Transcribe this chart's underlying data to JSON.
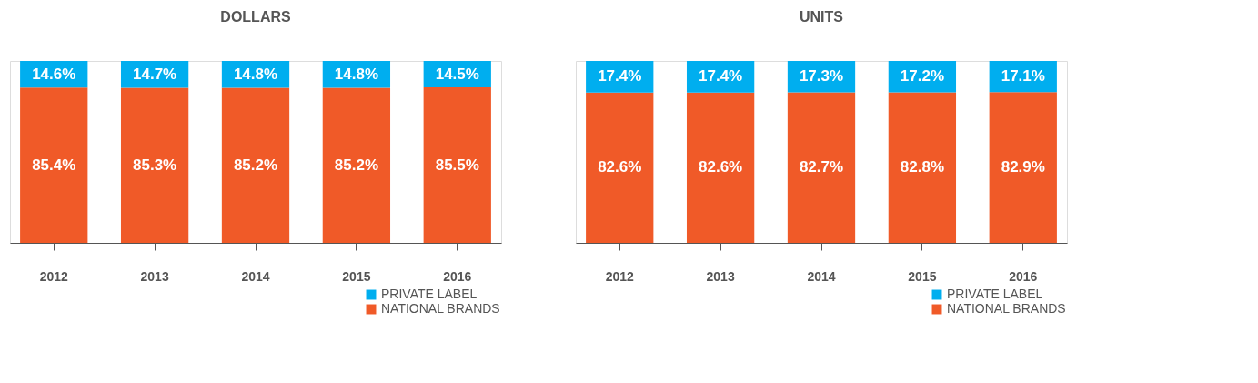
{
  "chart_data": [
    {
      "type": "bar",
      "title": "DOLLARS",
      "categories": [
        "2012",
        "2013",
        "2014",
        "2015",
        "2016"
      ],
      "stacked": true,
      "tick_labels": "x",
      "grid": false,
      "legend": "bottom right",
      "series": [
        {
          "name": "NATIONAL BRANDS",
          "color": "#f05a28",
          "values": [
            85.4,
            85.3,
            85.2,
            85.2,
            85.5
          ],
          "value_labels": [
            "85.4%",
            "85.3%",
            "85.2%",
            "85.2%",
            "85.5%"
          ]
        },
        {
          "name": "PRIVATE LABEL",
          "color": "#00aeef",
          "values": [
            14.6,
            14.7,
            14.8,
            14.8,
            14.5
          ],
          "value_labels": [
            "14.6%",
            "14.7%",
            "14.8%",
            "14.8%",
            "14.5%"
          ]
        }
      ]
    },
    {
      "type": "bar",
      "title": "UNITS",
      "categories": [
        "2012",
        "2013",
        "2014",
        "2015",
        "2016"
      ],
      "stacked": true,
      "tick_labels": "x",
      "grid": false,
      "legend": "bottom right",
      "series": [
        {
          "name": "NATIONAL BRANDS",
          "color": "#f05a28",
          "values": [
            82.6,
            82.6,
            82.7,
            82.8,
            82.9
          ],
          "value_labels": [
            "82.6%",
            "82.6%",
            "82.7%",
            "82.8%",
            "82.9%"
          ]
        },
        {
          "name": "PRIVATE LABEL",
          "color": "#00aeef",
          "values": [
            17.4,
            17.4,
            17.3,
            17.2,
            17.1
          ],
          "value_labels": [
            "17.4%",
            "17.4%",
            "17.3%",
            "17.2%",
            "17.1%"
          ]
        }
      ]
    }
  ]
}
